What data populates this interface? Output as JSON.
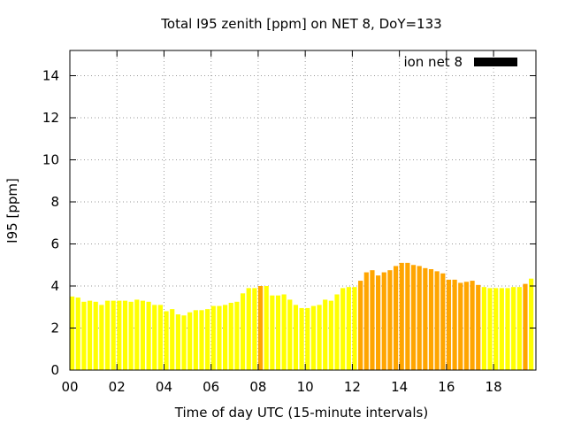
{
  "chart_data": {
    "type": "bar",
    "title": "Total I95 zenith [ppm] on NET 8, DoY=133",
    "xlabel": "Time of day UTC (15-minute intervals)",
    "ylabel": "I95 [ppm]",
    "ylim": [
      0,
      15.2
    ],
    "xlim": [
      0,
      19.8
    ],
    "x_ticks": [
      "00",
      "02",
      "04",
      "06",
      "08",
      "10",
      "12",
      "14",
      "16",
      "18"
    ],
    "y_ticks": [
      "0",
      "2",
      "4",
      "6",
      "8",
      "10",
      "12",
      "14"
    ],
    "grid": true,
    "legend": {
      "position": "top-right",
      "label": "ion net 8",
      "swatch_color": "#000000"
    },
    "bar_interval_hours": 0.25,
    "colors": {
      "low": "#ffff00",
      "high": "#ffa500"
    },
    "values": [
      3.5,
      3.45,
      3.25,
      3.3,
      3.25,
      3.1,
      3.3,
      3.3,
      3.3,
      3.3,
      3.25,
      3.35,
      3.3,
      3.25,
      3.1,
      3.1,
      2.8,
      2.9,
      2.65,
      2.6,
      2.75,
      2.85,
      2.85,
      2.9,
      3.05,
      3.05,
      3.1,
      3.2,
      3.25,
      3.65,
      3.9,
      3.9,
      4.0,
      4.0,
      3.55,
      3.55,
      3.6,
      3.35,
      3.1,
      2.95,
      2.95,
      3.05,
      3.1,
      3.35,
      3.3,
      3.6,
      3.9,
      3.95,
      3.95,
      4.25,
      4.65,
      4.75,
      4.5,
      4.65,
      4.75,
      4.95,
      5.1,
      5.1,
      5.0,
      4.95,
      4.85,
      4.8,
      4.7,
      4.6,
      4.3,
      4.3,
      4.15,
      4.2,
      4.25,
      4.05,
      3.95,
      3.9,
      3.9,
      3.9,
      3.9,
      3.95,
      3.95,
      4.1,
      4.35
    ],
    "bar_level": [
      "low",
      "low",
      "low",
      "low",
      "low",
      "low",
      "low",
      "low",
      "low",
      "low",
      "low",
      "low",
      "low",
      "low",
      "low",
      "low",
      "low",
      "low",
      "low",
      "low",
      "low",
      "low",
      "low",
      "low",
      "low",
      "low",
      "low",
      "low",
      "low",
      "low",
      "low",
      "low",
      "high",
      "low",
      "low",
      "low",
      "low",
      "low",
      "low",
      "low",
      "low",
      "low",
      "low",
      "low",
      "low",
      "low",
      "low",
      "low",
      "low",
      "high",
      "high",
      "high",
      "high",
      "high",
      "high",
      "high",
      "high",
      "high",
      "high",
      "high",
      "high",
      "high",
      "high",
      "high",
      "high",
      "high",
      "high",
      "high",
      "high",
      "high",
      "low",
      "low",
      "low",
      "low",
      "low",
      "low",
      "low",
      "high",
      "low"
    ]
  }
}
